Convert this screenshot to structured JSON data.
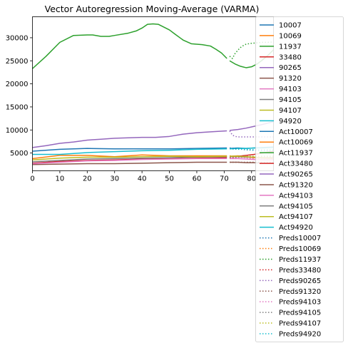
{
  "chart_data": {
    "type": "line",
    "title": "Vector Autoregression Moving-Average (VARMA)",
    "xlabel": "",
    "ylabel": "",
    "xlim": [
      0,
      88
    ],
    "ylim": [
      1150,
      34550
    ],
    "xticks": [
      0,
      10,
      20,
      30,
      40,
      50,
      60,
      70,
      80
    ],
    "yticks": [
      5000,
      10000,
      15000,
      20000,
      25000,
      30000
    ],
    "grid": false,
    "legend_position": "outside-right",
    "colors": [
      "#1f77b4",
      "#ff7f0e",
      "#2ca02c",
      "#d62728",
      "#9467bd",
      "#8c564b",
      "#e377c2",
      "#7f7f7f",
      "#bcbd22",
      "#17becf"
    ],
    "legend": [
      "10007",
      "10069",
      "11937",
      "33480",
      "90265",
      "91320",
      "94103",
      "94105",
      "94107",
      "94920",
      "Act10007",
      "Act10069",
      "Act11937",
      "Act33480",
      "Act90265",
      "Act91320",
      "Act94103",
      "Act94105",
      "Act94107",
      "Act94920",
      "Preds10007",
      "Preds10069",
      "Preds11937",
      "Preds33480",
      "Preds90265",
      "Preds91320",
      "Preds94103",
      "Preds94105",
      "Preds94107",
      "Preds94920"
    ],
    "series": [
      {
        "name": "10007",
        "group": "train",
        "x": [
          0,
          10,
          20,
          30,
          40,
          50,
          60,
          71
        ],
        "y": [
          5400,
          5800,
          6000,
          5900,
          5900,
          5900,
          6000,
          6100
        ]
      },
      {
        "name": "10069",
        "group": "train",
        "x": [
          0,
          10,
          20,
          30,
          40,
          50,
          60,
          71
        ],
        "y": [
          3800,
          4500,
          4500,
          4200,
          4600,
          4400,
          4400,
          4400
        ]
      },
      {
        "name": "11937",
        "group": "train",
        "x": [
          0,
          5,
          10,
          15,
          20,
          22,
          25,
          28,
          30,
          35,
          38,
          40,
          42,
          44,
          46,
          48,
          50,
          52,
          55,
          58,
          60,
          62,
          65,
          67,
          69,
          71
        ],
        "y": [
          23300,
          26000,
          29000,
          30500,
          30600,
          30600,
          30300,
          30300,
          30500,
          31000,
          31500,
          32100,
          32900,
          33000,
          32900,
          32300,
          31700,
          30800,
          29500,
          28700,
          28600,
          28500,
          28200,
          27500,
          26700,
          25500
        ]
      },
      {
        "name": "33480",
        "group": "train",
        "x": [
          0,
          10,
          20,
          30,
          40,
          50,
          60,
          71
        ],
        "y": [
          2800,
          3200,
          3400,
          3500,
          3700,
          3800,
          3900,
          4000
        ]
      },
      {
        "name": "90265",
        "group": "train",
        "x": [
          0,
          5,
          10,
          15,
          20,
          25,
          30,
          35,
          40,
          45,
          50,
          55,
          60,
          65,
          71
        ],
        "y": [
          6200,
          6600,
          7100,
          7400,
          7800,
          8000,
          8200,
          8300,
          8400,
          8400,
          8600,
          9100,
          9400,
          9600,
          9800
        ]
      },
      {
        "name": "91320",
        "group": "train",
        "x": [
          0,
          10,
          20,
          30,
          40,
          50,
          60,
          71
        ],
        "y": [
          2500,
          2600,
          2700,
          2700,
          2800,
          2900,
          3000,
          3000
        ]
      },
      {
        "name": "94103",
        "group": "train",
        "x": [
          0,
          10,
          20,
          30,
          40,
          50,
          60,
          71
        ],
        "y": [
          2700,
          3000,
          3300,
          3400,
          3600,
          3700,
          3800,
          3800
        ]
      },
      {
        "name": "94105",
        "group": "train",
        "x": [
          0,
          10,
          20,
          30,
          40,
          50,
          60,
          71
        ],
        "y": [
          3100,
          3400,
          3700,
          3800,
          3900,
          4000,
          4100,
          4200
        ]
      },
      {
        "name": "94107",
        "group": "train",
        "x": [
          0,
          10,
          20,
          30,
          40,
          50,
          60,
          71
        ],
        "y": [
          3500,
          3900,
          4100,
          4100,
          4200,
          4300,
          4200,
          4300
        ]
      },
      {
        "name": "94920",
        "group": "train",
        "x": [
          0,
          10,
          20,
          30,
          40,
          50,
          60,
          71
        ],
        "y": [
          4700,
          4700,
          5100,
          5300,
          5500,
          5600,
          5800,
          5900
        ]
      },
      {
        "name": "Act10007",
        "group": "actual",
        "x": [
          72,
          75,
          78,
          81,
          84,
          88
        ],
        "y": [
          6000,
          6100,
          6000,
          6100,
          6200,
          6300
        ]
      },
      {
        "name": "Act10069",
        "group": "actual",
        "x": [
          72,
          75,
          78,
          81,
          84,
          88
        ],
        "y": [
          4300,
          4400,
          4200,
          4000,
          3900,
          3800
        ]
      },
      {
        "name": "Act11937",
        "group": "actual",
        "x": [
          72,
          74,
          76,
          78,
          80,
          82,
          84,
          86,
          88
        ],
        "y": [
          25000,
          24300,
          23800,
          23500,
          23700,
          24300,
          25200,
          26200,
          27400
        ]
      },
      {
        "name": "Act33480",
        "group": "actual",
        "x": [
          72,
          75,
          78,
          81,
          84,
          88
        ],
        "y": [
          4200,
          4300,
          4500,
          4700,
          5000,
          5400
        ]
      },
      {
        "name": "Act90265",
        "group": "actual",
        "x": [
          72,
          75,
          78,
          81,
          84,
          88
        ],
        "y": [
          9900,
          10100,
          10400,
          10800,
          11200,
          11800
        ]
      },
      {
        "name": "Act91320",
        "group": "actual",
        "x": [
          72,
          75,
          78,
          81,
          84,
          88
        ],
        "y": [
          3000,
          3000,
          2900,
          2900,
          2800,
          2800
        ]
      },
      {
        "name": "Act94103",
        "group": "actual",
        "x": [
          72,
          75,
          78,
          81,
          84,
          88
        ],
        "y": [
          3800,
          3800,
          3700,
          3600,
          3500,
          3500
        ]
      },
      {
        "name": "Act94105",
        "group": "actual",
        "x": [
          72,
          75,
          78,
          81,
          84,
          88
        ],
        "y": [
          4200,
          4200,
          4100,
          4100,
          4000,
          4000
        ]
      },
      {
        "name": "Act94107",
        "group": "actual",
        "x": [
          72,
          75,
          78,
          81,
          84,
          88
        ],
        "y": [
          4300,
          4300,
          4200,
          4100,
          4000,
          3900
        ]
      },
      {
        "name": "Act94920",
        "group": "actual",
        "x": [
          72,
          75,
          78,
          81,
          84,
          88
        ],
        "y": [
          5900,
          6000,
          6000,
          6100,
          6100,
          6200
        ]
      },
      {
        "name": "Preds10007",
        "group": "pred",
        "x": [
          72,
          75,
          78,
          81,
          84,
          88
        ],
        "y": [
          6100,
          5900,
          5700,
          5600,
          5500,
          5500
        ]
      },
      {
        "name": "Preds10069",
        "group": "pred",
        "x": [
          72,
          75,
          78,
          81,
          84,
          88
        ],
        "y": [
          4400,
          4200,
          4100,
          4000,
          3900,
          3900
        ]
      },
      {
        "name": "Preds11937",
        "group": "pred",
        "x": [
          72,
          73,
          74,
          75,
          76,
          77,
          78,
          80,
          82,
          84,
          86,
          88
        ],
        "y": [
          26000,
          25500,
          26600,
          27300,
          27900,
          28300,
          28600,
          28800,
          28900,
          29000,
          29000,
          29100
        ]
      },
      {
        "name": "Preds33480",
        "group": "pred",
        "x": [
          72,
          75,
          78,
          81,
          84,
          88
        ],
        "y": [
          4000,
          4100,
          4200,
          4200,
          4300,
          4300
        ]
      },
      {
        "name": "Preds90265",
        "group": "pred",
        "x": [
          72,
          73,
          74,
          75,
          78,
          81,
          84,
          88
        ],
        "y": [
          9800,
          8900,
          8600,
          8500,
          8500,
          8500,
          8500,
          8500
        ]
      },
      {
        "name": "Preds91320",
        "group": "pred",
        "x": [
          72,
          75,
          78,
          81,
          84,
          88
        ],
        "y": [
          3000,
          3000,
          3000,
          3000,
          3000,
          3000
        ]
      },
      {
        "name": "Preds94103",
        "group": "pred",
        "x": [
          72,
          75,
          78,
          81,
          84,
          88
        ],
        "y": [
          3800,
          3800,
          3800,
          3800,
          3800,
          3800
        ]
      },
      {
        "name": "Preds94105",
        "group": "pred",
        "x": [
          72,
          75,
          78,
          81,
          84,
          88
        ],
        "y": [
          4200,
          4200,
          4200,
          4200,
          4200,
          4200
        ]
      },
      {
        "name": "Preds94107",
        "group": "pred",
        "x": [
          72,
          75,
          78,
          81,
          84,
          88
        ],
        "y": [
          4300,
          4300,
          4300,
          4300,
          4300,
          4300
        ]
      },
      {
        "name": "Preds94920",
        "group": "pred",
        "x": [
          72,
          75,
          78,
          81,
          84,
          88
        ],
        "y": [
          5900,
          5800,
          5800,
          5700,
          5700,
          5700
        ]
      }
    ]
  }
}
